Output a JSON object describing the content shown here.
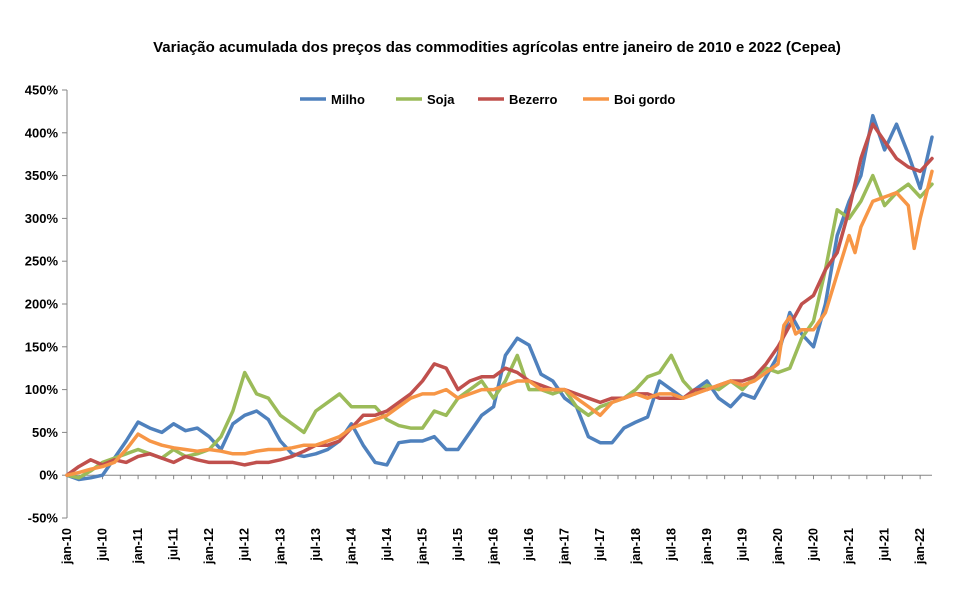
{
  "chart_data": {
    "type": "line",
    "title": "Variação acumulada dos preços das commodities agrícolas entre janeiro de 2010 e 2022 (Cepea)",
    "xlabel": "",
    "ylabel": "",
    "ylim": [
      -50,
      450
    ],
    "y_tick_values": [
      -50,
      0,
      50,
      100,
      150,
      200,
      250,
      300,
      350,
      400,
      450
    ],
    "y_tick_labels": [
      "-50%",
      "0%",
      "50%",
      "100%",
      "150%",
      "200%",
      "250%",
      "300%",
      "350%",
      "400%",
      "450%"
    ],
    "x_tick_labels": [
      "jan-10",
      "jul-10",
      "jan-11",
      "jul-11",
      "jan-12",
      "jul-12",
      "jan-13",
      "jul-13",
      "jan-14",
      "jul-14",
      "jan-15",
      "jul-15",
      "jan-16",
      "jul-16",
      "jan-17",
      "jul-17",
      "jan-18",
      "jul-18",
      "jan-19",
      "jul-19",
      "jan-20",
      "jul-20",
      "jan-21",
      "jul-21",
      "jan-22"
    ],
    "x_tick_month_index": [
      0,
      6,
      12,
      18,
      24,
      30,
      36,
      42,
      48,
      54,
      60,
      66,
      72,
      78,
      84,
      90,
      96,
      102,
      108,
      114,
      120,
      126,
      132,
      138,
      144
    ],
    "legend_position": "top-center",
    "grid": false,
    "series": [
      {
        "name": "Milho",
        "color": "#4f81bd",
        "points": [
          [
            0,
            0
          ],
          [
            2,
            -5
          ],
          [
            4,
            -3
          ],
          [
            6,
            0
          ],
          [
            8,
            20
          ],
          [
            10,
            40
          ],
          [
            12,
            62
          ],
          [
            14,
            55
          ],
          [
            16,
            50
          ],
          [
            18,
            60
          ],
          [
            20,
            52
          ],
          [
            22,
            55
          ],
          [
            24,
            45
          ],
          [
            26,
            30
          ],
          [
            28,
            60
          ],
          [
            30,
            70
          ],
          [
            32,
            75
          ],
          [
            34,
            65
          ],
          [
            36,
            40
          ],
          [
            38,
            25
          ],
          [
            40,
            22
          ],
          [
            42,
            25
          ],
          [
            44,
            30
          ],
          [
            46,
            40
          ],
          [
            48,
            60
          ],
          [
            50,
            35
          ],
          [
            52,
            15
          ],
          [
            54,
            12
          ],
          [
            56,
            38
          ],
          [
            58,
            40
          ],
          [
            60,
            40
          ],
          [
            62,
            45
          ],
          [
            64,
            30
          ],
          [
            66,
            30
          ],
          [
            68,
            50
          ],
          [
            70,
            70
          ],
          [
            72,
            80
          ],
          [
            74,
            140
          ],
          [
            76,
            160
          ],
          [
            78,
            152
          ],
          [
            80,
            118
          ],
          [
            82,
            110
          ],
          [
            84,
            90
          ],
          [
            86,
            80
          ],
          [
            88,
            45
          ],
          [
            90,
            38
          ],
          [
            92,
            38
          ],
          [
            94,
            55
          ],
          [
            96,
            62
          ],
          [
            98,
            68
          ],
          [
            100,
            110
          ],
          [
            102,
            100
          ],
          [
            104,
            90
          ],
          [
            106,
            100
          ],
          [
            108,
            110
          ],
          [
            110,
            90
          ],
          [
            112,
            80
          ],
          [
            114,
            95
          ],
          [
            116,
            90
          ],
          [
            118,
            115
          ],
          [
            120,
            140
          ],
          [
            122,
            190
          ],
          [
            124,
            165
          ],
          [
            126,
            150
          ],
          [
            128,
            200
          ],
          [
            130,
            280
          ],
          [
            132,
            320
          ],
          [
            134,
            350
          ],
          [
            136,
            420
          ],
          [
            138,
            380
          ],
          [
            140,
            410
          ],
          [
            142,
            375
          ],
          [
            144,
            335
          ],
          [
            146,
            395
          ]
        ]
      },
      {
        "name": "Soja",
        "color": "#9bbb59",
        "points": [
          [
            0,
            0
          ],
          [
            2,
            -3
          ],
          [
            4,
            5
          ],
          [
            6,
            15
          ],
          [
            8,
            20
          ],
          [
            10,
            25
          ],
          [
            12,
            30
          ],
          [
            14,
            25
          ],
          [
            16,
            20
          ],
          [
            18,
            30
          ],
          [
            20,
            22
          ],
          [
            22,
            25
          ],
          [
            24,
            30
          ],
          [
            26,
            45
          ],
          [
            28,
            75
          ],
          [
            30,
            120
          ],
          [
            32,
            95
          ],
          [
            34,
            90
          ],
          [
            36,
            70
          ],
          [
            38,
            60
          ],
          [
            40,
            50
          ],
          [
            42,
            75
          ],
          [
            44,
            85
          ],
          [
            46,
            95
          ],
          [
            48,
            80
          ],
          [
            50,
            80
          ],
          [
            52,
            80
          ],
          [
            54,
            65
          ],
          [
            56,
            58
          ],
          [
            58,
            55
          ],
          [
            60,
            55
          ],
          [
            62,
            75
          ],
          [
            64,
            70
          ],
          [
            66,
            90
          ],
          [
            68,
            100
          ],
          [
            70,
            110
          ],
          [
            72,
            90
          ],
          [
            74,
            110
          ],
          [
            76,
            140
          ],
          [
            78,
            100
          ],
          [
            80,
            100
          ],
          [
            82,
            95
          ],
          [
            84,
            100
          ],
          [
            86,
            80
          ],
          [
            88,
            70
          ],
          [
            90,
            80
          ],
          [
            92,
            85
          ],
          [
            94,
            90
          ],
          [
            96,
            100
          ],
          [
            98,
            115
          ],
          [
            100,
            120
          ],
          [
            102,
            140
          ],
          [
            104,
            110
          ],
          [
            106,
            95
          ],
          [
            108,
            105
          ],
          [
            110,
            100
          ],
          [
            112,
            110
          ],
          [
            114,
            100
          ],
          [
            116,
            115
          ],
          [
            118,
            125
          ],
          [
            120,
            120
          ],
          [
            122,
            125
          ],
          [
            124,
            160
          ],
          [
            126,
            180
          ],
          [
            128,
            240
          ],
          [
            130,
            310
          ],
          [
            132,
            300
          ],
          [
            134,
            320
          ],
          [
            136,
            350
          ],
          [
            138,
            315
          ],
          [
            140,
            330
          ],
          [
            142,
            340
          ],
          [
            144,
            325
          ],
          [
            146,
            340
          ]
        ]
      },
      {
        "name": "Bezerro",
        "color": "#c0504d",
        "points": [
          [
            0,
            0
          ],
          [
            2,
            10
          ],
          [
            4,
            18
          ],
          [
            6,
            12
          ],
          [
            8,
            18
          ],
          [
            10,
            15
          ],
          [
            12,
            22
          ],
          [
            14,
            25
          ],
          [
            16,
            20
          ],
          [
            18,
            15
          ],
          [
            20,
            22
          ],
          [
            22,
            18
          ],
          [
            24,
            15
          ],
          [
            26,
            15
          ],
          [
            28,
            15
          ],
          [
            30,
            12
          ],
          [
            32,
            15
          ],
          [
            34,
            15
          ],
          [
            36,
            18
          ],
          [
            38,
            22
          ],
          [
            40,
            28
          ],
          [
            42,
            35
          ],
          [
            44,
            35
          ],
          [
            46,
            40
          ],
          [
            48,
            55
          ],
          [
            50,
            70
          ],
          [
            52,
            70
          ],
          [
            54,
            75
          ],
          [
            56,
            85
          ],
          [
            58,
            95
          ],
          [
            60,
            110
          ],
          [
            62,
            130
          ],
          [
            64,
            125
          ],
          [
            66,
            100
          ],
          [
            68,
            110
          ],
          [
            70,
            115
          ],
          [
            72,
            115
          ],
          [
            74,
            125
          ],
          [
            76,
            120
          ],
          [
            78,
            110
          ],
          [
            80,
            105
          ],
          [
            82,
            100
          ],
          [
            84,
            100
          ],
          [
            86,
            95
          ],
          [
            88,
            90
          ],
          [
            90,
            85
          ],
          [
            92,
            90
          ],
          [
            94,
            90
          ],
          [
            96,
            95
          ],
          [
            98,
            95
          ],
          [
            100,
            90
          ],
          [
            102,
            90
          ],
          [
            104,
            90
          ],
          [
            106,
            100
          ],
          [
            108,
            100
          ],
          [
            110,
            105
          ],
          [
            112,
            110
          ],
          [
            114,
            110
          ],
          [
            116,
            115
          ],
          [
            118,
            130
          ],
          [
            120,
            150
          ],
          [
            122,
            175
          ],
          [
            124,
            200
          ],
          [
            126,
            210
          ],
          [
            128,
            240
          ],
          [
            130,
            260
          ],
          [
            132,
            310
          ],
          [
            134,
            370
          ],
          [
            136,
            410
          ],
          [
            138,
            390
          ],
          [
            140,
            370
          ],
          [
            142,
            360
          ],
          [
            144,
            355
          ],
          [
            146,
            370
          ]
        ]
      },
      {
        "name": "Boi gordo",
        "color": "#f79646",
        "points": [
          [
            0,
            0
          ],
          [
            2,
            3
          ],
          [
            4,
            7
          ],
          [
            6,
            10
          ],
          [
            8,
            15
          ],
          [
            10,
            30
          ],
          [
            12,
            48
          ],
          [
            14,
            40
          ],
          [
            16,
            35
          ],
          [
            18,
            32
          ],
          [
            20,
            30
          ],
          [
            22,
            28
          ],
          [
            24,
            30
          ],
          [
            26,
            28
          ],
          [
            28,
            25
          ],
          [
            30,
            25
          ],
          [
            32,
            28
          ],
          [
            34,
            30
          ],
          [
            36,
            30
          ],
          [
            38,
            32
          ],
          [
            40,
            35
          ],
          [
            42,
            35
          ],
          [
            44,
            40
          ],
          [
            46,
            45
          ],
          [
            48,
            55
          ],
          [
            50,
            60
          ],
          [
            52,
            65
          ],
          [
            54,
            70
          ],
          [
            56,
            80
          ],
          [
            58,
            90
          ],
          [
            60,
            95
          ],
          [
            62,
            95
          ],
          [
            64,
            100
          ],
          [
            66,
            90
          ],
          [
            68,
            95
          ],
          [
            70,
            100
          ],
          [
            72,
            100
          ],
          [
            74,
            105
          ],
          [
            76,
            110
          ],
          [
            78,
            110
          ],
          [
            80,
            100
          ],
          [
            82,
            100
          ],
          [
            84,
            100
          ],
          [
            86,
            90
          ],
          [
            88,
            80
          ],
          [
            90,
            70
          ],
          [
            92,
            85
          ],
          [
            94,
            90
          ],
          [
            96,
            95
          ],
          [
            98,
            90
          ],
          [
            100,
            95
          ],
          [
            102,
            95
          ],
          [
            104,
            90
          ],
          [
            106,
            95
          ],
          [
            108,
            100
          ],
          [
            110,
            105
          ],
          [
            112,
            110
          ],
          [
            114,
            105
          ],
          [
            116,
            110
          ],
          [
            118,
            120
          ],
          [
            120,
            130
          ],
          [
            121,
            175
          ],
          [
            122,
            185
          ],
          [
            123,
            165
          ],
          [
            124,
            170
          ],
          [
            126,
            170
          ],
          [
            128,
            190
          ],
          [
            130,
            235
          ],
          [
            132,
            280
          ],
          [
            133,
            260
          ],
          [
            134,
            290
          ],
          [
            136,
            320
          ],
          [
            138,
            325
          ],
          [
            140,
            330
          ],
          [
            142,
            315
          ],
          [
            143,
            265
          ],
          [
            144,
            300
          ],
          [
            146,
            355
          ]
        ]
      }
    ]
  }
}
